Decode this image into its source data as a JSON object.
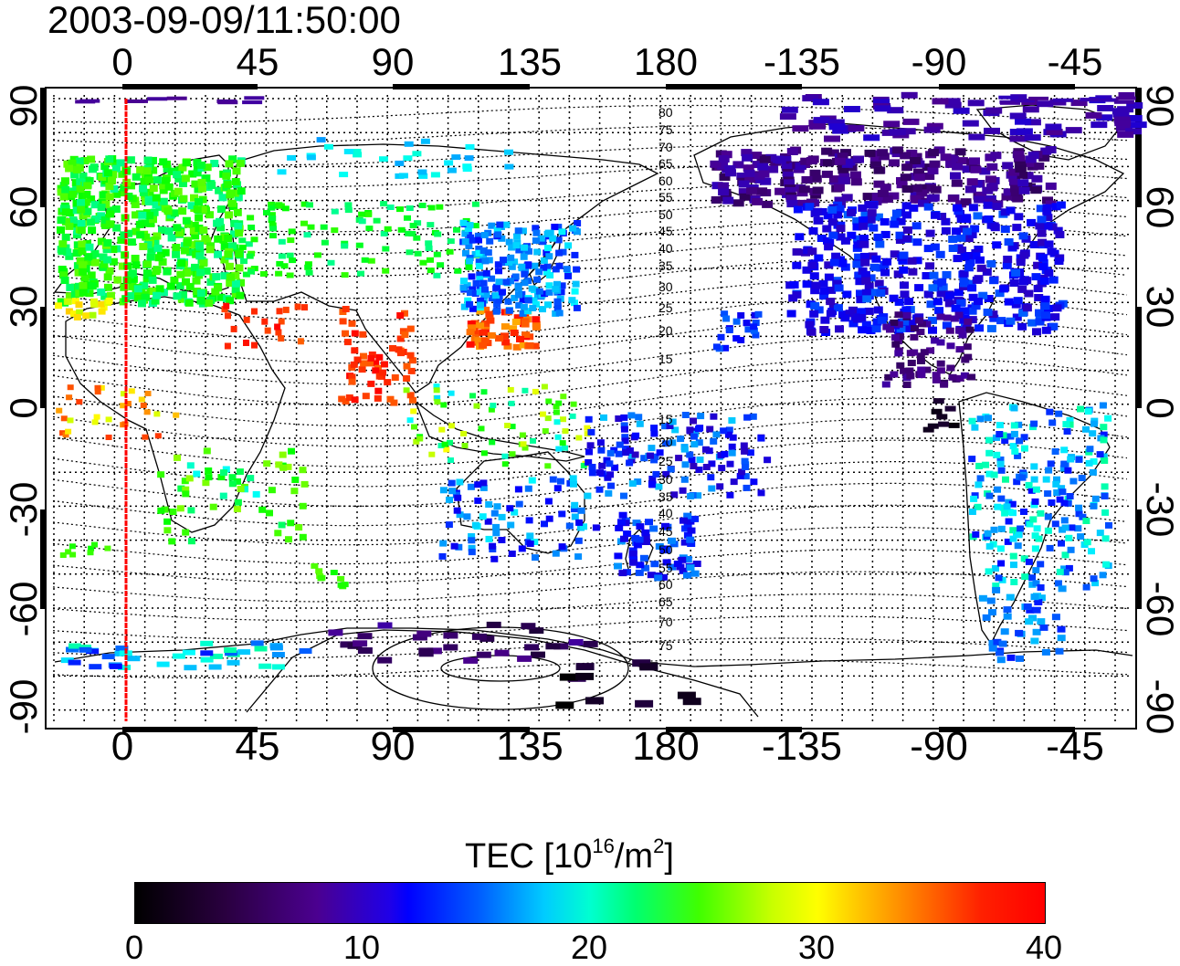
{
  "title": "2003-09-09/11:50:00",
  "axes": {
    "lon_ticks": [
      "0",
      "45",
      "90",
      "135",
      "180",
      "-135",
      "-90",
      "-45"
    ],
    "lat_ticks": [
      "90",
      "60",
      "30",
      "0",
      "-30",
      "-60",
      "-90"
    ]
  },
  "contour_labels": [
    "80",
    "75",
    "70",
    "65",
    "60",
    "55",
    "50",
    "45",
    "40",
    "35",
    "30",
    "25",
    "20",
    "15",
    "15",
    "20",
    "25",
    "30",
    "35",
    "40",
    "45",
    "50",
    "55",
    "60",
    "65",
    "70",
    "75"
  ],
  "colorbar": {
    "title": "TEC  [10",
    "title_exp": "16",
    "title_unit": "/m",
    "title_unit_exp": "2",
    "title_close": "]",
    "ticks": [
      "0",
      "10",
      "20",
      "30",
      "40"
    ],
    "colormap": [
      "#000000",
      "#4b0090",
      "#0000ff",
      "#00ffff",
      "#00ff00",
      "#ffff00",
      "#ff0000"
    ]
  },
  "highlight_meridian_lon": 2,
  "highlight_color": "#ff0000"
}
